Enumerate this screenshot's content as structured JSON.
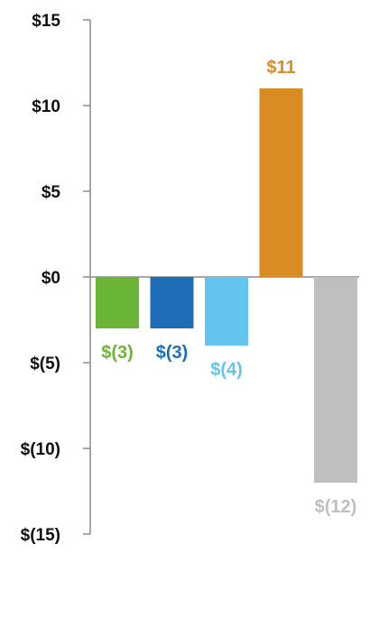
{
  "chart_data": {
    "type": "bar",
    "categories": [
      "",
      "",
      "",
      "",
      ""
    ],
    "values": [
      -3,
      -3,
      -4,
      11,
      -12
    ],
    "data_labels": [
      "$(3)",
      "$(3)",
      "$(4)",
      "$11",
      "$(12)"
    ],
    "colors": [
      "#6bb536",
      "#1f6db6",
      "#63c4f0",
      "#d98b24",
      "#bfbfbf"
    ],
    "title": "",
    "xlabel": "",
    "ylabel": "",
    "ylim": [
      -15,
      15
    ],
    "yticks": [
      15,
      10,
      5,
      0,
      -5,
      -10,
      -15
    ],
    "ytick_labels": [
      "$15",
      "$10",
      "$5",
      "$0",
      "$(5)",
      "$(10)",
      "$(15)"
    ],
    "grid": false,
    "legend": "none"
  }
}
